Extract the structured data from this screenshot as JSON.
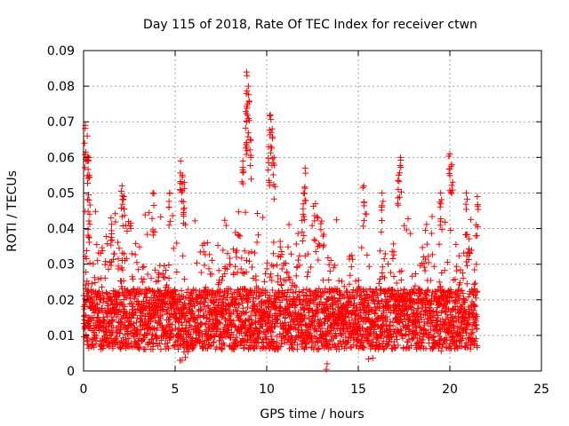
{
  "chart_data": {
    "type": "scatter",
    "title": "Day 115 of 2018, Rate Of TEC Index for receiver ctwn",
    "xlabel": "GPS time / hours",
    "ylabel": "ROTI / TECUs",
    "xlim": [
      0,
      25
    ],
    "ylim": [
      0,
      0.09
    ],
    "xticks": [
      0,
      5,
      10,
      15,
      20,
      25
    ],
    "xtick_labels": [
      "0",
      "5",
      "10",
      "15",
      "20",
      "25"
    ],
    "yticks": [
      0,
      0.01,
      0.02,
      0.03,
      0.04,
      0.05,
      0.06,
      0.07,
      0.08,
      0.09
    ],
    "ytick_labels": [
      "0",
      "0.01",
      "0.02",
      "0.03",
      "0.04",
      "0.05",
      "0.06",
      "0.07",
      "0.08",
      "0.09"
    ],
    "grid": true,
    "marker": "+",
    "color": "#ff0000",
    "series": [
      {
        "name": "ROTI",
        "x_range": [
          0,
          21.5
        ],
        "baseline_range": [
          0.006,
          0.025
        ],
        "notable_points": [
          {
            "x": 0.1,
            "y": 0.069
          },
          {
            "x": 0.2,
            "y": 0.066
          },
          {
            "x": 0.25,
            "y": 0.06
          },
          {
            "x": 0.3,
            "y": 0.055
          },
          {
            "x": 0.3,
            "y": 0.048
          },
          {
            "x": 1.5,
            "y": 0.043
          },
          {
            "x": 2.1,
            "y": 0.052
          },
          {
            "x": 2.2,
            "y": 0.049
          },
          {
            "x": 3.8,
            "y": 0.05
          },
          {
            "x": 4.7,
            "y": 0.05
          },
          {
            "x": 5.3,
            "y": 0.059
          },
          {
            "x": 5.4,
            "y": 0.055
          },
          {
            "x": 5.5,
            "y": 0.053
          },
          {
            "x": 8.7,
            "y": 0.059
          },
          {
            "x": 8.9,
            "y": 0.084
          },
          {
            "x": 9.0,
            "y": 0.08
          },
          {
            "x": 8.95,
            "y": 0.075
          },
          {
            "x": 8.9,
            "y": 0.07
          },
          {
            "x": 9.1,
            "y": 0.065
          },
          {
            "x": 10.2,
            "y": 0.072
          },
          {
            "x": 10.3,
            "y": 0.068
          },
          {
            "x": 10.1,
            "y": 0.063
          },
          {
            "x": 10.4,
            "y": 0.06
          },
          {
            "x": 12.1,
            "y": 0.057
          },
          {
            "x": 12.0,
            "y": 0.05
          },
          {
            "x": 15.3,
            "y": 0.052
          },
          {
            "x": 16.3,
            "y": 0.05
          },
          {
            "x": 17.3,
            "y": 0.06
          },
          {
            "x": 17.2,
            "y": 0.055
          },
          {
            "x": 19.5,
            "y": 0.05
          },
          {
            "x": 20.0,
            "y": 0.061
          },
          {
            "x": 20.1,
            "y": 0.058
          },
          {
            "x": 20.9,
            "y": 0.05
          },
          {
            "x": 21.5,
            "y": 0.049
          },
          {
            "x": 13.3,
            "y": 0.002
          }
        ]
      }
    ]
  }
}
